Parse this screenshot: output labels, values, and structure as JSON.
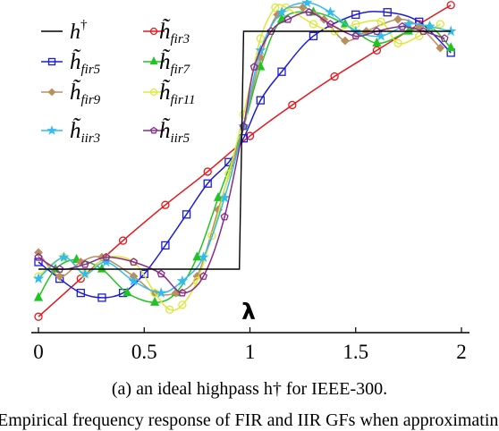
{
  "chart_data": {
    "type": "line",
    "xlabel": "λ",
    "ylabel": "",
    "xlim": [
      -0.02,
      2.0
    ],
    "ylim": [
      -0.2,
      1.12
    ],
    "x_ticks": [
      0,
      0.5,
      1,
      1.5,
      2
    ],
    "x_tick_labels": [
      "0",
      "0.5",
      "1",
      "1.5",
      "2"
    ],
    "grid": false,
    "legend_position": "top-left",
    "series": [
      {
        "id": "h_ideal",
        "name": "h†",
        "color": "#000000",
        "marker": "none",
        "x": [
          0,
          0.95,
          0.96,
          0.97,
          1.95
        ],
        "y": [
          0,
          0,
          0.5,
          1,
          1
        ]
      },
      {
        "id": "fir3",
        "name": "h̃fir3",
        "color": "#e8161b",
        "marker": "circle",
        "x": [
          0,
          0.2,
          0.4,
          0.6,
          0.8,
          1.0,
          1.2,
          1.4,
          1.6,
          1.8,
          1.95
        ],
        "y": [
          -0.2,
          -0.04,
          0.12,
          0.27,
          0.41,
          0.56,
          0.69,
          0.81,
          0.92,
          1.03,
          1.11
        ]
      },
      {
        "id": "fir5",
        "name": "h̃fir5",
        "color": "#1c1cd6",
        "marker": "square",
        "x": [
          0,
          0.1,
          0.2,
          0.3,
          0.4,
          0.5,
          0.6,
          0.7,
          0.8,
          0.9,
          0.97,
          1.05,
          1.15,
          1.3,
          1.5,
          1.65,
          1.8,
          1.95
        ],
        "y": [
          0.03,
          -0.04,
          -0.1,
          -0.12,
          -0.1,
          -0.02,
          0.1,
          0.23,
          0.36,
          0.45,
          0.55,
          0.71,
          0.83,
          0.98,
          1.07,
          1.08,
          1.04,
          0.91
        ]
      },
      {
        "id": "fir7",
        "name": "h̃fir7",
        "color": "#22c422",
        "marker": "triangle",
        "x": [
          0,
          0.08,
          0.18,
          0.3,
          0.42,
          0.55,
          0.65,
          0.75,
          0.85,
          0.97,
          1.05,
          1.15,
          1.3,
          1.45,
          1.6,
          1.75,
          1.85,
          1.95
        ],
        "y": [
          -0.12,
          0.0,
          0.04,
          0.0,
          -0.1,
          -0.14,
          -0.1,
          0.05,
          0.3,
          0.6,
          0.85,
          1.05,
          1.08,
          1.03,
          0.95,
          1.0,
          1.02,
          0.93
        ]
      },
      {
        "id": "fir9",
        "name": "h̃fir9",
        "color": "#b89060",
        "marker": "diamond",
        "x": [
          0,
          0.1,
          0.2,
          0.3,
          0.45,
          0.55,
          0.65,
          0.75,
          0.85,
          0.97,
          1.05,
          1.13,
          1.25,
          1.35,
          1.45,
          1.55,
          1.7,
          1.8,
          1.9
        ],
        "y": [
          0.07,
          -0.03,
          0.03,
          0.05,
          -0.03,
          -0.1,
          -0.1,
          -0.03,
          0.25,
          0.6,
          0.89,
          1.07,
          1.1,
          1.05,
          0.96,
          1.0,
          1.05,
          1.02,
          0.93
        ]
      },
      {
        "id": "fir11",
        "name": "h̃fir11",
        "color": "#dde83a",
        "marker": "circle",
        "x": [
          0,
          0.12,
          0.22,
          0.32,
          0.45,
          0.55,
          0.62,
          0.68,
          0.75,
          0.82,
          0.9,
          0.97,
          1.05,
          1.12,
          1.17,
          1.3,
          1.4,
          1.5,
          1.62,
          1.7,
          1.8,
          1.9
        ],
        "y": [
          -0.03,
          0.05,
          -0.02,
          0.05,
          0.03,
          -0.1,
          -0.17,
          -0.15,
          -0.05,
          0.14,
          0.4,
          0.65,
          0.97,
          1.1,
          1.1,
          1.03,
          1.0,
          1.03,
          1.04,
          0.95,
          0.98,
          1.03
        ]
      },
      {
        "id": "iir3",
        "name": "h̃iir3",
        "color": "#33bbee",
        "marker": "star",
        "x": [
          0,
          0.12,
          0.22,
          0.32,
          0.45,
          0.58,
          0.68,
          0.78,
          0.88,
          0.97,
          1.05,
          1.15,
          1.27,
          1.38,
          1.5,
          1.62,
          1.75,
          1.85,
          1.95
        ],
        "y": [
          -0.04,
          0.05,
          -0.02,
          0.03,
          -0.05,
          -0.1,
          -0.05,
          0.05,
          0.3,
          0.6,
          0.92,
          1.08,
          1.12,
          1.08,
          1.0,
          0.98,
          1.03,
          1.02,
          1.0
        ]
      },
      {
        "id": "iir5",
        "name": "h̃iir5",
        "color": "#8b2a8b",
        "marker": "pentagon",
        "x": [
          0,
          0.1,
          0.22,
          0.32,
          0.45,
          0.58,
          0.68,
          0.78,
          0.88,
          0.97,
          1.02,
          1.1,
          1.18,
          1.28,
          1.38,
          1.5,
          1.6,
          1.72,
          1.82,
          1.92
        ],
        "y": [
          0.05,
          0.0,
          0.02,
          0.05,
          0.03,
          -0.02,
          -0.1,
          -0.03,
          0.22,
          0.6,
          0.85,
          1.0,
          1.05,
          1.08,
          1.03,
          0.98,
          1.0,
          1.02,
          1.0,
          0.97
        ]
      }
    ]
  },
  "caption": "(a) an ideal highpass h† for IEEE-300.",
  "caption_under": "Empirical frequency response of FIR and IIR GFs when approximating"
}
